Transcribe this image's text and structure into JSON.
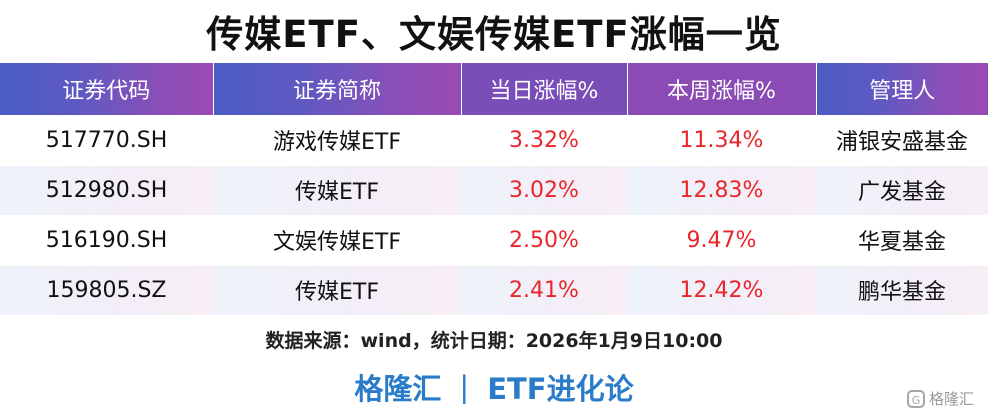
{
  "title": "传媒ETF、文娱传媒ETF涨幅一览",
  "table": {
    "headers": [
      "证券代码",
      "证券简称",
      "当日涨幅%",
      "本周涨幅%",
      "管理人"
    ],
    "rows": [
      {
        "code": "517770.SH",
        "name": "游戏传媒ETF",
        "day": "3.32%",
        "week": "11.34%",
        "manager": "浦银安盛基金"
      },
      {
        "code": "512980.SH",
        "name": "传媒ETF",
        "day": "3.02%",
        "week": "12.83%",
        "manager": "广发基金"
      },
      {
        "code": "516190.SH",
        "name": "文娱传媒ETF",
        "day": "2.50%",
        "week": "9.47%",
        "manager": "华夏基金"
      },
      {
        "code": "159805.SZ",
        "name": "传媒ETF",
        "day": "2.41%",
        "week": "12.42%",
        "manager": "鹏华基金"
      }
    ]
  },
  "source": "数据来源：wind，统计日期：2026年1月9日10:00",
  "brand": {
    "left": "格隆汇",
    "separator": "|",
    "right": "ETF进化论"
  },
  "watermark": {
    "icon": "G",
    "text": "格隆汇"
  },
  "colors": {
    "header_bg": "#5e59c2",
    "positive": "#e8262b",
    "brand": "#2a7bc9"
  }
}
